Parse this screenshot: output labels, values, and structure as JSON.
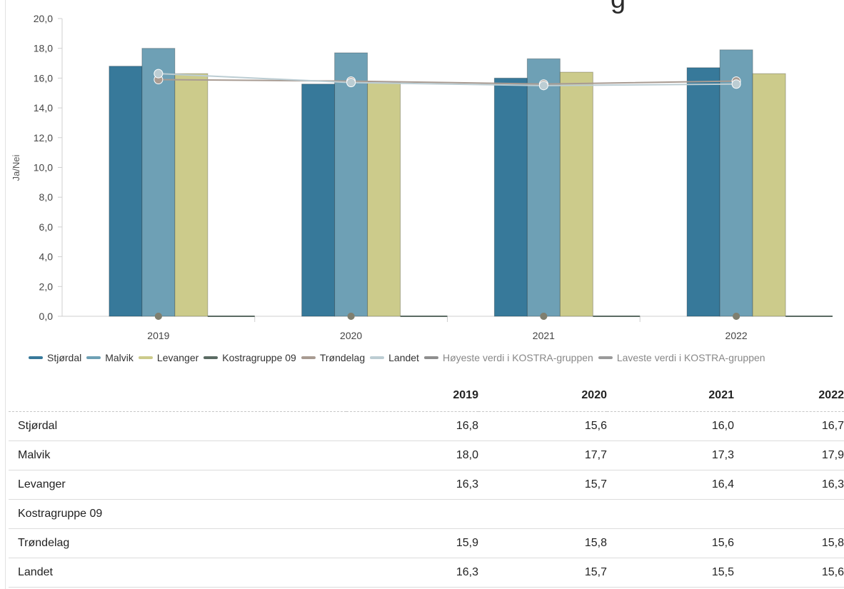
{
  "title_fragment": "g",
  "chart_data": {
    "type": "bar",
    "categories": [
      "2019",
      "2020",
      "2021",
      "2022"
    ],
    "ylabel": "Ja/Nei",
    "xlabel": "",
    "ylim": [
      0,
      20
    ],
    "yticks": [
      "0,0",
      "2,0",
      "4,0",
      "6,0",
      "8,0",
      "10,0",
      "12,0",
      "14,0",
      "16,0",
      "18,0",
      "20,0"
    ],
    "bar_series": [
      {
        "name": "Stjørdal",
        "color": "#37799a",
        "values": [
          16.8,
          15.6,
          16.0,
          16.7
        ]
      },
      {
        "name": "Malvik",
        "color": "#6ea0b5",
        "values": [
          18.0,
          17.7,
          17.3,
          17.9
        ]
      },
      {
        "name": "Levanger",
        "color": "#cccb8b",
        "values": [
          16.3,
          15.7,
          16.4,
          16.3
        ]
      }
    ],
    "line_series": [
      {
        "name": "Kostragruppe 09",
        "color": "#5b6b63",
        "values": [
          null,
          null,
          null,
          null
        ]
      },
      {
        "name": "Trøndelag",
        "color": "#a89b92",
        "values": [
          15.9,
          15.8,
          15.6,
          15.8
        ]
      },
      {
        "name": "Landet",
        "color": "#bccdd3",
        "values": [
          16.3,
          15.7,
          15.5,
          15.6
        ]
      },
      {
        "name": "Høyeste verdi i KOSTRA-gruppen",
        "color": "#8e8e8e",
        "values": [
          0,
          0,
          0,
          0
        ]
      },
      {
        "name": "Laveste verdi i KOSTRA-gruppen",
        "color": "#9a9a9a",
        "values": [
          0,
          0,
          0,
          0
        ]
      }
    ],
    "legend_position": "bottom",
    "grid": false
  },
  "legend": [
    {
      "label": "Stjørdal",
      "color": "#37799a",
      "dim": false
    },
    {
      "label": "Malvik",
      "color": "#6ea0b5",
      "dim": false
    },
    {
      "label": "Levanger",
      "color": "#cccb8b",
      "dim": false
    },
    {
      "label": "Kostragruppe 09",
      "color": "#5b6b63",
      "dim": false
    },
    {
      "label": "Trøndelag",
      "color": "#a89b92",
      "dim": false
    },
    {
      "label": "Landet",
      "color": "#bccdd3",
      "dim": false
    },
    {
      "label": "Høyeste verdi i KOSTRA-gruppen",
      "color": "#8e8e8e",
      "dim": true
    },
    {
      "label": "Laveste verdi i KOSTRA-gruppen",
      "color": "#9a9a9a",
      "dim": true
    }
  ],
  "table": {
    "headers": [
      "",
      "2019",
      "2020",
      "2021",
      "2022"
    ],
    "rows": [
      {
        "label": "Stjørdal",
        "values": [
          "16,8",
          "15,6",
          "16,0",
          "16,7"
        ]
      },
      {
        "label": "Malvik",
        "values": [
          "18,0",
          "17,7",
          "17,3",
          "17,9"
        ]
      },
      {
        "label": "Levanger",
        "values": [
          "16,3",
          "15,7",
          "16,4",
          "16,3"
        ]
      },
      {
        "label": "Kostragruppe 09",
        "values": [
          "",
          "",
          "",
          ""
        ]
      },
      {
        "label": "Trøndelag",
        "values": [
          "15,9",
          "15,8",
          "15,6",
          "15,8"
        ]
      },
      {
        "label": "Landet",
        "values": [
          "16,3",
          "15,7",
          "15,5",
          "15,6"
        ]
      }
    ]
  }
}
